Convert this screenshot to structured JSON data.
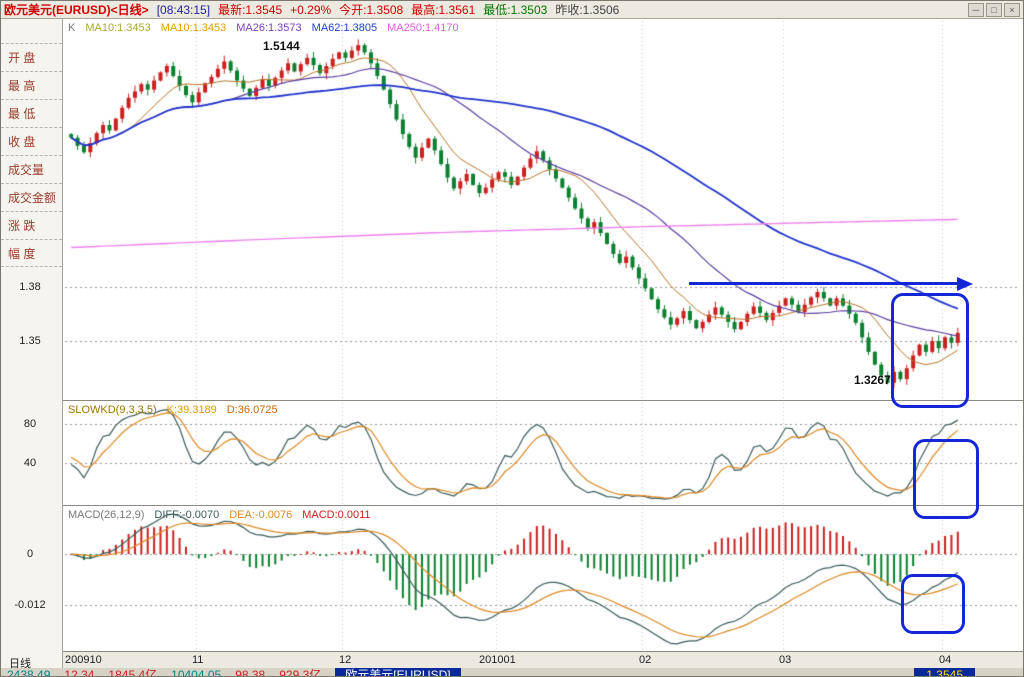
{
  "titlebar": {
    "title": "欧元美元(EURUSD)<日线>",
    "time": "[08:43:15]",
    "quotes": [
      {
        "label": "最新:1.3545",
        "color": "#d00000"
      },
      {
        "label": "+0.29%",
        "color": "#d00000"
      },
      {
        "label": "今开:1.3508",
        "color": "#d00000"
      },
      {
        "label": "最高:1.3561",
        "color": "#d00000"
      },
      {
        "label": "最低:1.3503",
        "color": "#007700"
      },
      {
        "label": "昨收:1.3506",
        "color": "#444444"
      }
    ],
    "window_buttons": [
      "─",
      "□",
      "×"
    ]
  },
  "sidebar": {
    "items": [
      "开  盘",
      "最  高",
      "最  低",
      "收  盘",
      "成交量",
      "成交金额",
      "涨  跌",
      "幅  度"
    ]
  },
  "time_axis": {
    "period_label": "日线"
  },
  "status_bar": {
    "segments": [
      {
        "text": "2438.49",
        "color": "#00858a"
      },
      {
        "text": "12.34",
        "color": "#d02020"
      },
      {
        "text": "1845.4亿",
        "color": "#d02020"
      },
      {
        "text": "10404.05",
        "color": "#00858a"
      },
      {
        "text": "98.38",
        "color": "#d02020"
      },
      {
        "text": "929.3亿",
        "color": "#d02020"
      }
    ],
    "ticker_left": "欧元美元[EURUSD]",
    "ticker_right": "1.3545"
  },
  "chart_data": {
    "type": "candlestick",
    "symbol": "EURUSD",
    "symbol_name": "欧元美元",
    "timeframe": "日线",
    "x_axis_months": [
      {
        "label": "200910",
        "index": 0
      },
      {
        "label": "11",
        "index": 20
      },
      {
        "label": "12",
        "index": 43
      },
      {
        "label": "201001",
        "index": 67
      },
      {
        "label": "02",
        "index": 90
      },
      {
        "label": "03",
        "index": 112
      },
      {
        "label": "04",
        "index": 137
      }
    ],
    "close_series": [
      1.462,
      1.4575,
      1.454,
      1.459,
      1.4645,
      1.469,
      1.466,
      1.4725,
      1.4785,
      1.484,
      1.4875,
      1.4915,
      1.4885,
      1.4935,
      1.498,
      1.5015,
      1.496,
      1.4905,
      1.4855,
      1.4815,
      1.487,
      1.492,
      1.4955,
      1.5,
      1.504,
      1.499,
      1.4935,
      1.489,
      1.485,
      1.4895,
      1.494,
      1.4905,
      1.495,
      1.499,
      1.503,
      1.4985,
      1.5025,
      1.506,
      1.502,
      1.4975,
      1.5015,
      1.5055,
      1.509,
      1.506,
      1.51,
      1.513,
      1.509,
      1.503,
      1.496,
      1.4885,
      1.4805,
      1.472,
      1.464,
      1.457,
      1.451,
      1.4565,
      1.4615,
      1.455,
      1.4475,
      1.44,
      1.434,
      1.438,
      1.442,
      1.436,
      1.4315,
      1.4345,
      1.439,
      1.443,
      1.4405,
      1.436,
      1.4405,
      1.4455,
      1.4505,
      1.4545,
      1.4495,
      1.4445,
      1.4395,
      1.4345,
      1.429,
      1.423,
      1.4175,
      1.412,
      1.4155,
      1.4095,
      1.4035,
      1.398,
      1.393,
      1.3965,
      1.3905,
      1.3845,
      1.379,
      1.373,
      1.3675,
      1.363,
      1.359,
      1.3625,
      1.3665,
      1.3615,
      1.357,
      1.3605,
      1.3645,
      1.3685,
      1.3645,
      1.3605,
      1.3565,
      1.3605,
      1.365,
      1.369,
      1.3655,
      1.3615,
      1.3655,
      1.3695,
      1.3735,
      1.37,
      1.366,
      1.37,
      1.374,
      1.377,
      1.3735,
      1.3695,
      1.3735,
      1.3695,
      1.365,
      1.36,
      1.352,
      1.344,
      1.337,
      1.331,
      1.327,
      1.333,
      1.329,
      1.335,
      1.342,
      1.348,
      1.344,
      1.35,
      1.346,
      1.352,
      1.349,
      1.3545
    ],
    "price_gridlines": [
      1.38,
      1.35
    ],
    "up_color": "#cc2020",
    "down_color": "#0c8030",
    "main_legend": [
      {
        "text": "K",
        "color": "#777777"
      },
      {
        "text": "MA10:1.3453",
        "color": "#a8a832"
      },
      {
        "text": "MA10:1.3453",
        "color": "#e0a000"
      },
      {
        "text": "MA26:1.3573",
        "color": "#8040c0"
      },
      {
        "text": "MA62:1.3805",
        "color": "#2040d0"
      },
      {
        "text": "MA250:1.4170",
        "color": "#e060e0"
      }
    ],
    "ma_lines": [
      {
        "name": "MA10",
        "window": 10,
        "color": "#b8732a",
        "width": 1
      },
      {
        "name": "MA26",
        "window": 26,
        "color": "#5b3fa0",
        "width": 1.2
      },
      {
        "name": "MA62",
        "window": 62,
        "color": "#2233cc",
        "width": 1.8
      }
    ],
    "ma250": {
      "name": "MA250",
      "color": "#ee82ee",
      "points": [
        [
          0,
          1.4015
        ],
        [
          30,
          1.406
        ],
        [
          60,
          1.41
        ],
        [
          90,
          1.413
        ],
        [
          120,
          1.4155
        ],
        [
          139,
          1.417
        ]
      ]
    },
    "annotations": {
      "peak_label": "1.5144",
      "trough_label": "1.3267"
    },
    "kd_panel": {
      "legend": [
        {
          "text": "SLOWKD(9,3,3,5)",
          "color": "#997700"
        },
        {
          "text": "K:39.3189",
          "color": "#dd9900"
        },
        {
          "text": "D:36.0725",
          "color": "#cc6600"
        }
      ],
      "gridlines": [
        80,
        40
      ],
      "k_color": "#3d5c5c",
      "d_color": "#dd8822",
      "params": {
        "n": 9,
        "k_smooth": 3,
        "d_smooth": 3
      }
    },
    "macd_panel": {
      "legend": [
        {
          "text": "MACD(26,12,9)",
          "color": "#777777"
        },
        {
          "text": "DIFF:-0.0070",
          "color": "#3d5c5c"
        },
        {
          "text": "DEA:-0.0076",
          "color": "#dd8822"
        },
        {
          "text": "MACD:0.0011",
          "color": "#cc2020"
        }
      ],
      "gridline_labels": [
        0,
        -0.012
      ],
      "diff_color": "#3d5c5c",
      "dea_color": "#dd8822",
      "hist_up_color": "#cc2020",
      "hist_down_color": "#0c8030",
      "params": {
        "fast": 12,
        "slow": 26,
        "signal": 9
      }
    }
  }
}
